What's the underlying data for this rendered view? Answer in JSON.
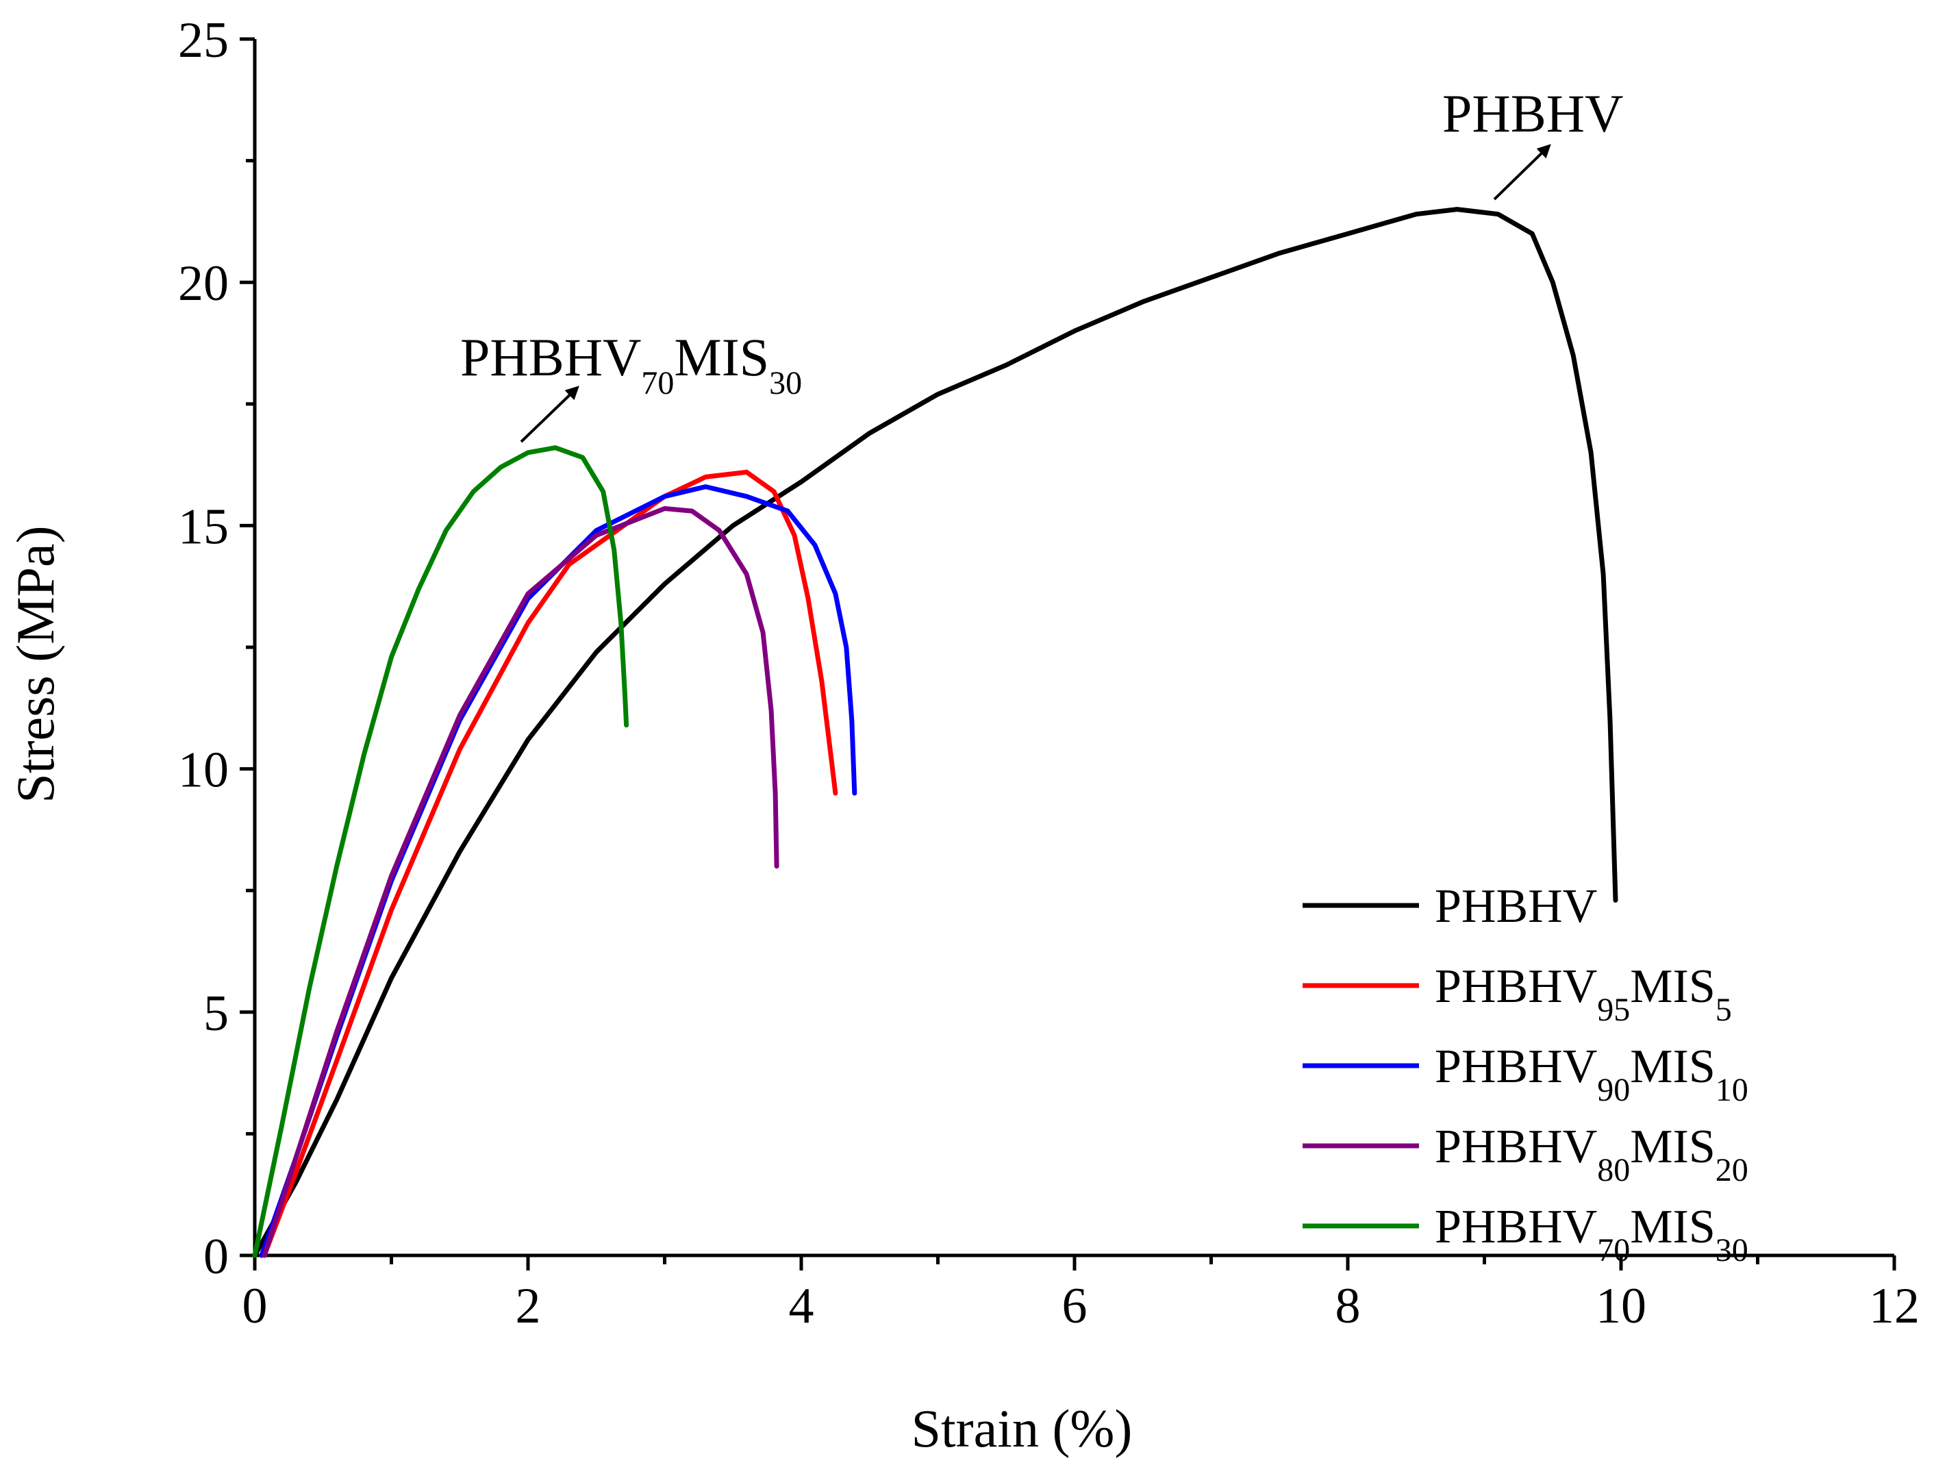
{
  "chart_data": {
    "type": "line",
    "title": "",
    "xlabel": "Strain (%)",
    "ylabel": "Stress (MPa)",
    "xlim": [
      0,
      12
    ],
    "ylim": [
      0,
      25
    ],
    "xticks": [
      "0",
      "2",
      "4",
      "6",
      "8",
      "10",
      "12"
    ],
    "yticks": [
      "0",
      "5",
      "10",
      "15",
      "20",
      "25"
    ],
    "legend_position": "bottom-right",
    "series": [
      {
        "name": "PHBHV",
        "color": "#000000",
        "legend": {
          "base": "PHBHV",
          "sub1": "",
          "mid": "",
          "sub2": ""
        },
        "points": [
          [
            0,
            0
          ],
          [
            0.3,
            1.5
          ],
          [
            0.6,
            3.2
          ],
          [
            1.0,
            5.7
          ],
          [
            1.5,
            8.3
          ],
          [
            2.0,
            10.6
          ],
          [
            2.5,
            12.4
          ],
          [
            3.0,
            13.8
          ],
          [
            3.5,
            15.0
          ],
          [
            4.0,
            15.9
          ],
          [
            4.5,
            16.9
          ],
          [
            5.0,
            17.7
          ],
          [
            5.5,
            18.3
          ],
          [
            6.0,
            19.0
          ],
          [
            6.5,
            19.6
          ],
          [
            7.0,
            20.1
          ],
          [
            7.5,
            20.6
          ],
          [
            8.0,
            21.0
          ],
          [
            8.5,
            21.4
          ],
          [
            8.8,
            21.5
          ],
          [
            9.1,
            21.4
          ],
          [
            9.35,
            21.0
          ],
          [
            9.5,
            20.0
          ],
          [
            9.65,
            18.5
          ],
          [
            9.78,
            16.5
          ],
          [
            9.87,
            14.0
          ],
          [
            9.92,
            11.0
          ],
          [
            9.96,
            7.3
          ]
        ]
      },
      {
        "name": "PHBHV95MIS5",
        "color": "#ff0000",
        "legend": {
          "base": "PHBHV",
          "sub1": "95",
          "mid": "MIS",
          "sub2": "5"
        },
        "points": [
          [
            0.07,
            0
          ],
          [
            0.3,
            1.7
          ],
          [
            0.6,
            4.0
          ],
          [
            1.0,
            7.1
          ],
          [
            1.5,
            10.4
          ],
          [
            2.0,
            13.0
          ],
          [
            2.3,
            14.2
          ],
          [
            2.6,
            14.8
          ],
          [
            3.0,
            15.6
          ],
          [
            3.3,
            16.0
          ],
          [
            3.6,
            16.1
          ],
          [
            3.8,
            15.7
          ],
          [
            3.95,
            14.8
          ],
          [
            4.05,
            13.5
          ],
          [
            4.15,
            11.8
          ],
          [
            4.22,
            10.2
          ],
          [
            4.25,
            9.5
          ]
        ]
      },
      {
        "name": "PHBHV90MIS10",
        "color": "#0000ff",
        "legend": {
          "base": "PHBHV",
          "sub1": "90",
          "mid": "MIS",
          "sub2": "10"
        },
        "points": [
          [
            0.05,
            0
          ],
          [
            0.3,
            2.0
          ],
          [
            0.6,
            4.5
          ],
          [
            1.0,
            7.7
          ],
          [
            1.5,
            11.0
          ],
          [
            2.0,
            13.5
          ],
          [
            2.5,
            14.9
          ],
          [
            3.0,
            15.6
          ],
          [
            3.3,
            15.8
          ],
          [
            3.6,
            15.6
          ],
          [
            3.9,
            15.3
          ],
          [
            4.1,
            14.6
          ],
          [
            4.25,
            13.6
          ],
          [
            4.33,
            12.5
          ],
          [
            4.37,
            11.0
          ],
          [
            4.39,
            9.5
          ]
        ]
      },
      {
        "name": "PHBHV80MIS20",
        "color": "#800080",
        "legend": {
          "base": "PHBHV",
          "sub1": "80",
          "mid": "MIS",
          "sub2": "20"
        },
        "points": [
          [
            0.07,
            0
          ],
          [
            0.3,
            2.0
          ],
          [
            0.6,
            4.6
          ],
          [
            1.0,
            7.8
          ],
          [
            1.5,
            11.1
          ],
          [
            2.0,
            13.6
          ],
          [
            2.5,
            14.8
          ],
          [
            3.0,
            15.35
          ],
          [
            3.2,
            15.3
          ],
          [
            3.4,
            14.9
          ],
          [
            3.6,
            14.0
          ],
          [
            3.72,
            12.8
          ],
          [
            3.78,
            11.2
          ],
          [
            3.81,
            9.5
          ],
          [
            3.82,
            8.0
          ]
        ]
      },
      {
        "name": "PHBHV70MIS30",
        "color": "#008000",
        "legend": {
          "base": "PHBHV",
          "sub1": "70",
          "mid": "MIS",
          "sub2": "30"
        },
        "points": [
          [
            0,
            0
          ],
          [
            0.2,
            2.7
          ],
          [
            0.4,
            5.5
          ],
          [
            0.6,
            8.0
          ],
          [
            0.8,
            10.3
          ],
          [
            1.0,
            12.3
          ],
          [
            1.2,
            13.7
          ],
          [
            1.4,
            14.9
          ],
          [
            1.6,
            15.7
          ],
          [
            1.8,
            16.2
          ],
          [
            2.0,
            16.5
          ],
          [
            2.2,
            16.6
          ],
          [
            2.4,
            16.4
          ],
          [
            2.55,
            15.7
          ],
          [
            2.63,
            14.5
          ],
          [
            2.68,
            13.0
          ],
          [
            2.71,
            11.5
          ],
          [
            2.72,
            10.9
          ]
        ]
      }
    ],
    "annotations": [
      {
        "base": "PHBHV",
        "sub1": "",
        "mid": "",
        "sub2": ""
      },
      {
        "base": "PHBHV",
        "sub1": "70",
        "mid": "MIS",
        "sub2": "30"
      }
    ]
  }
}
